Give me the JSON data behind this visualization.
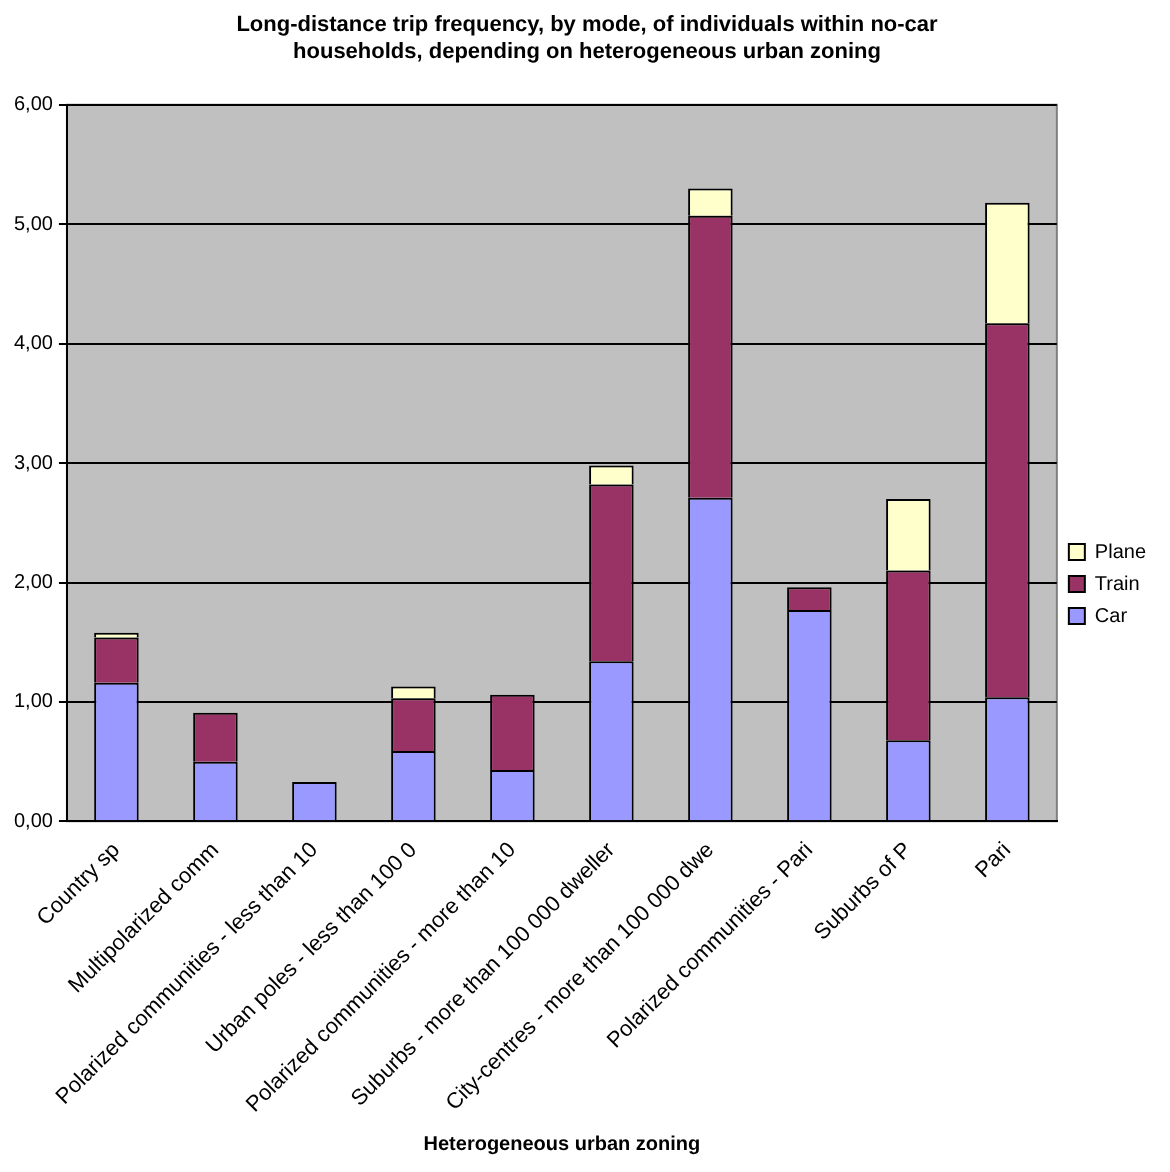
{
  "chart_data": {
    "type": "bar",
    "title": "Long-distance trip frequency, by mode, of individuals within no-car households, depending on heterogeneous urban zoning",
    "xlabel": "Heterogeneous urban zoning",
    "categories": [
      "Country sp",
      "Multipolarized comm",
      "Polarized communities - less than 10",
      "Urban poles - less than 100 0",
      "Polarized communities - more than 10",
      "Suburbs - more than 100 000 dweller",
      "City-centres - more than 100 000 dwe",
      "Polarized communities - Pari",
      "Suburbs of P",
      "Pari"
    ],
    "series": [
      {
        "name": "Car",
        "color": "#9999ff",
        "values": [
          1.16,
          0.5,
          0.33,
          0.59,
          0.43,
          1.34,
          2.71,
          1.77,
          0.68,
          1.04
        ]
      },
      {
        "name": "Train",
        "color": "#993366",
        "values": [
          0.38,
          0.41,
          0,
          0.44,
          0.63,
          1.48,
          2.36,
          0.19,
          1.42,
          3.13
        ]
      },
      {
        "name": "Plane",
        "color": "#ffffcc",
        "values": [
          0.04,
          0,
          0,
          0.1,
          0,
          0.16,
          0.23,
          0,
          0.6,
          1.01
        ]
      }
    ],
    "stacked": true,
    "ylim": [
      0,
      6
    ],
    "yticks": [
      {
        "value": 0,
        "label": "0,00"
      },
      {
        "value": 1,
        "label": "1,00"
      },
      {
        "value": 2,
        "label": "2,00"
      },
      {
        "value": 3,
        "label": "3,00"
      },
      {
        "value": 4,
        "label": "4,00"
      },
      {
        "value": 5,
        "label": "5,00"
      },
      {
        "value": 6,
        "label": "6,00"
      }
    ],
    "grid": "y",
    "legend": "right"
  }
}
